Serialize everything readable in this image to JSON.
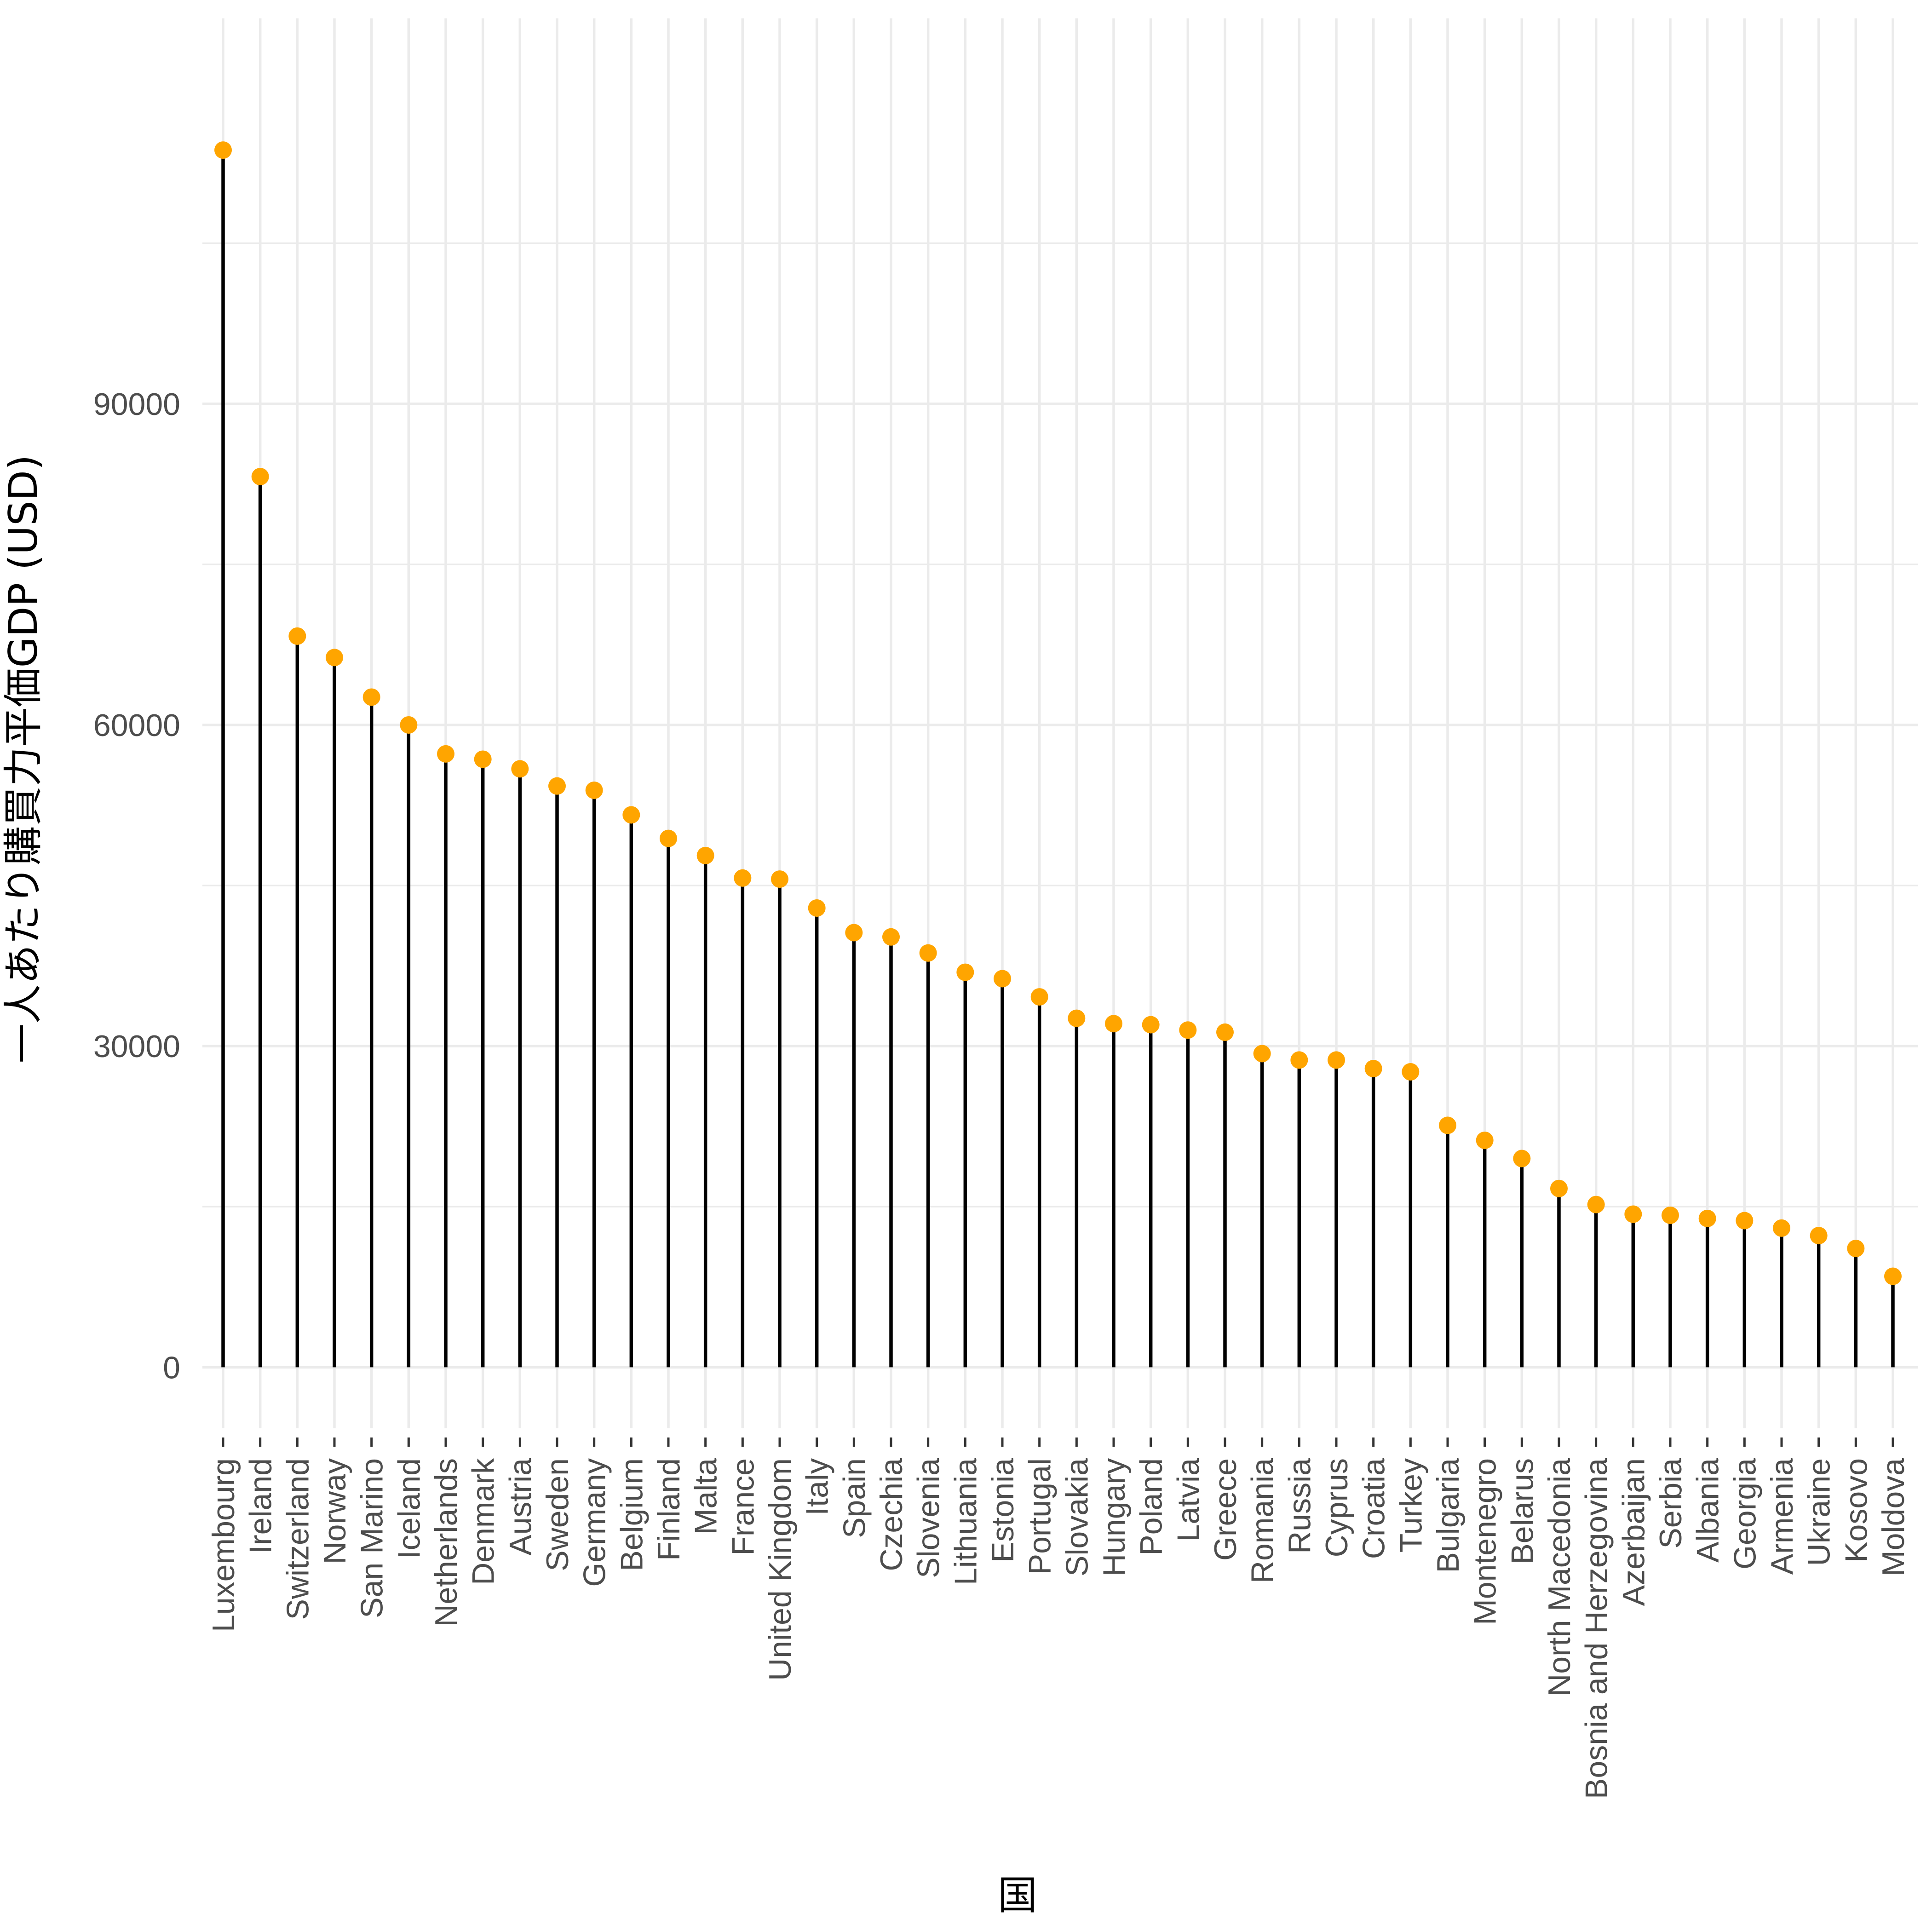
{
  "chart_data": {
    "type": "lollipop",
    "xlabel": "国",
    "ylabel": "一人あたり購買力平価GDP (USD)",
    "ylim": [
      -5700,
      126000
    ],
    "y_ticks": [
      0,
      30000,
      60000,
      90000
    ],
    "grid": true,
    "legend": "none",
    "point_color": "#FFA500",
    "stem_color": "#000000",
    "categories": [
      "Luxembourg",
      "Ireland",
      "Switzerland",
      "Norway",
      "San Marino",
      "Iceland",
      "Netherlands",
      "Denmark",
      "Austria",
      "Sweden",
      "Germany",
      "Belgium",
      "Finland",
      "Malta",
      "France",
      "United Kingdom",
      "Italy",
      "Spain",
      "Czechia",
      "Slovenia",
      "Lithuania",
      "Estonia",
      "Portugal",
      "Slovakia",
      "Hungary",
      "Poland",
      "Latvia",
      "Greece",
      "Romania",
      "Russia",
      "Cyprus",
      "Croatia",
      "Turkey",
      "Bulgaria",
      "Montenegro",
      "Belarus",
      "North Macedonia",
      "Bosnia and Herzegovina",
      "Azerbaijan",
      "Serbia",
      "Albania",
      "Georgia",
      "Armenia",
      "Ukraine",
      "Kosovo",
      "Moldova"
    ],
    "values": [
      113700,
      83200,
      68300,
      66300,
      62600,
      60000,
      57300,
      56800,
      55900,
      54300,
      53900,
      51600,
      49400,
      47800,
      45700,
      45600,
      42900,
      40600,
      40200,
      38700,
      36900,
      36300,
      34600,
      32600,
      32100,
      32000,
      31500,
      31300,
      29300,
      28700,
      28700,
      27900,
      27600,
      22600,
      21200,
      19500,
      16700,
      15200,
      14300,
      14200,
      13900,
      13700,
      13000,
      12300,
      11100,
      8500
    ]
  }
}
